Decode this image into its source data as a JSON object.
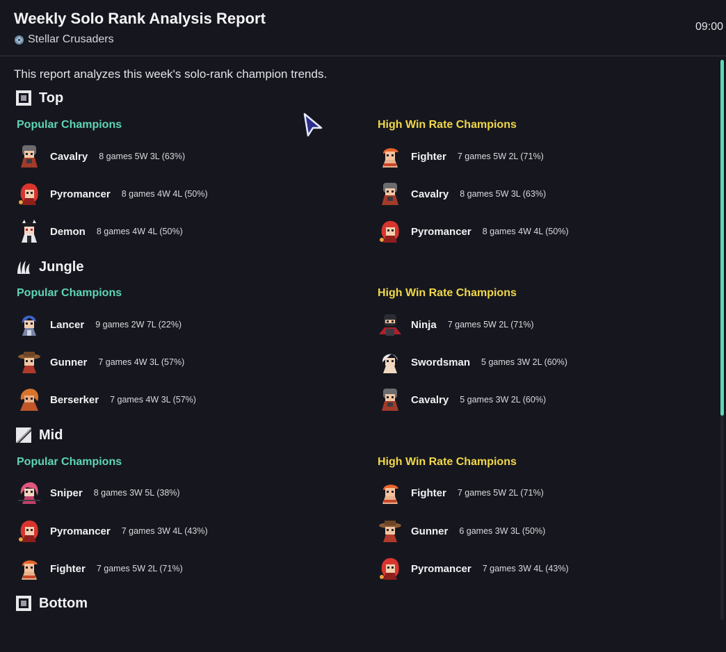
{
  "header": {
    "title": "Weekly Solo Rank Analysis Report",
    "team": "Stellar Crusaders",
    "time": "09:00"
  },
  "intro": "This report analyzes this week's solo-rank champion trends.",
  "colors": {
    "popular": "#5fd5b6",
    "high_win_rate": "#f1d84a",
    "scroll_thumb": "#5fd5b6"
  },
  "lanes": [
    {
      "name": "Top",
      "icon": "top-lane-icon",
      "popular_label": "Popular Champions",
      "high_label": "High Win Rate Champions",
      "popular": [
        {
          "name": "Cavalry",
          "stats": "8 games 5W 3L (63%)",
          "icon": "cavalry-avatar-icon"
        },
        {
          "name": "Pyromancer",
          "stats": "8 games 4W 4L (50%)",
          "icon": "pyromancer-avatar-icon"
        },
        {
          "name": "Demon",
          "stats": "8 games 4W 4L (50%)",
          "icon": "demon-avatar-icon"
        }
      ],
      "high": [
        {
          "name": "Fighter",
          "stats": "7 games 5W 2L (71%)",
          "icon": "fighter-avatar-icon"
        },
        {
          "name": "Cavalry",
          "stats": "8 games 5W 3L (63%)",
          "icon": "cavalry-avatar-icon"
        },
        {
          "name": "Pyromancer",
          "stats": "8 games 4W 4L (50%)",
          "icon": "pyromancer-avatar-icon"
        }
      ]
    },
    {
      "name": "Jungle",
      "icon": "jungle-lane-icon",
      "popular_label": "Popular Champions",
      "high_label": "High Win Rate Champions",
      "popular": [
        {
          "name": "Lancer",
          "stats": "9 games 2W 7L (22%)",
          "icon": "lancer-avatar-icon"
        },
        {
          "name": "Gunner",
          "stats": "7 games 4W 3L (57%)",
          "icon": "gunner-avatar-icon"
        },
        {
          "name": "Berserker",
          "stats": "7 games 4W 3L (57%)",
          "icon": "berserker-avatar-icon"
        }
      ],
      "high": [
        {
          "name": "Ninja",
          "stats": "7 games 5W 2L (71%)",
          "icon": "ninja-avatar-icon"
        },
        {
          "name": "Swordsman",
          "stats": "5 games 3W 2L (60%)",
          "icon": "swordsman-avatar-icon"
        },
        {
          "name": "Cavalry",
          "stats": "5 games 3W 2L (60%)",
          "icon": "cavalry-avatar-icon"
        }
      ]
    },
    {
      "name": "Mid",
      "icon": "mid-lane-icon",
      "popular_label": "Popular Champions",
      "high_label": "High Win Rate Champions",
      "popular": [
        {
          "name": "Sniper",
          "stats": "8 games 3W 5L (38%)",
          "icon": "sniper-avatar-icon"
        },
        {
          "name": "Pyromancer",
          "stats": "7 games 3W 4L (43%)",
          "icon": "pyromancer-avatar-icon"
        },
        {
          "name": "Fighter",
          "stats": "7 games 5W 2L (71%)",
          "icon": "fighter-avatar-icon"
        }
      ],
      "high": [
        {
          "name": "Fighter",
          "stats": "7 games 5W 2L (71%)",
          "icon": "fighter-avatar-icon"
        },
        {
          "name": "Gunner",
          "stats": "6 games 3W 3L (50%)",
          "icon": "gunner-avatar-icon"
        },
        {
          "name": "Pyromancer",
          "stats": "7 games 3W 4L (43%)",
          "icon": "pyromancer-avatar-icon"
        }
      ]
    },
    {
      "name": "Bottom",
      "icon": "bottom-lane-icon"
    }
  ]
}
